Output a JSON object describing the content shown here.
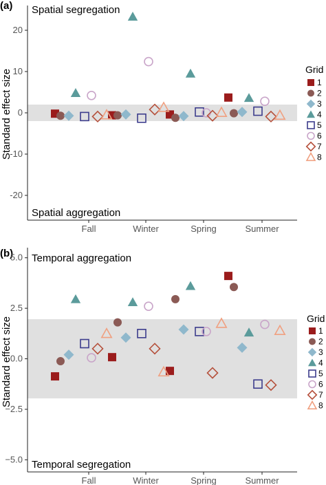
{
  "chart_data": [
    {
      "type": "scatter",
      "panel_label": "(a)",
      "top_annotation": "Spatial segregation",
      "bottom_annotation": "Spatial aggregation",
      "ylabel": "Standard effect size",
      "xlabel": "",
      "categories": [
        "Fall",
        "Winter",
        "Spring",
        "Summer"
      ],
      "ylim": [
        -26,
        26
      ],
      "yticks": [
        -20,
        -10,
        0,
        10,
        20
      ],
      "shaded_band": [
        -2,
        2
      ],
      "legend_title": "Grid",
      "legend_position": "right",
      "series": [
        {
          "name": "1",
          "values": [
            -0.2,
            -0.6,
            -0.4,
            3.7
          ]
        },
        {
          "name": "2",
          "values": [
            -0.7,
            -0.6,
            -1.2,
            -0.1
          ]
        },
        {
          "name": "3",
          "values": [
            -0.7,
            -0.4,
            -0.8,
            0.2
          ]
        },
        {
          "name": "4",
          "values": [
            4.8,
            23.3,
            9.5,
            3.6
          ]
        },
        {
          "name": "5",
          "values": [
            -0.9,
            -1.3,
            0.2,
            0.4
          ]
        },
        {
          "name": "6",
          "values": [
            4.2,
            12.4,
            0.0,
            2.8
          ]
        },
        {
          "name": "7",
          "values": [
            -0.9,
            0.8,
            -0.7,
            -0.9
          ]
        },
        {
          "name": "8",
          "values": [
            -0.5,
            1.3,
            0.1,
            -0.6
          ]
        }
      ]
    },
    {
      "type": "scatter",
      "panel_label": "(b)",
      "top_annotation": "Temporal aggregation",
      "bottom_annotation": "Temporal segregation",
      "ylabel": "Standard effect size",
      "xlabel": "",
      "categories": [
        "Fall",
        "Winter",
        "Spring",
        "Summer"
      ],
      "ylim": [
        -5.6,
        5.5
      ],
      "yticks": [
        -5.0,
        -2.5,
        0.0,
        2.5,
        5.0
      ],
      "ytick_labels": [
        "−5.0",
        "−2.5",
        "0.0",
        "2.5",
        "5.0"
      ],
      "shaded_band": [
        -1.96,
        1.96
      ],
      "legend_title": "Grid",
      "legend_position": "right",
      "series": [
        {
          "name": "1",
          "values": [
            -0.87,
            0.08,
            -0.6,
            4.1
          ]
        },
        {
          "name": "2",
          "values": [
            -0.12,
            1.8,
            2.95,
            3.55
          ]
        },
        {
          "name": "3",
          "values": [
            0.2,
            1.05,
            1.45,
            0.55
          ]
        },
        {
          "name": "4",
          "values": [
            2.95,
            2.8,
            3.6,
            1.3
          ]
        },
        {
          "name": "5",
          "values": [
            0.75,
            1.25,
            1.35,
            -1.25
          ]
        },
        {
          "name": "6",
          "values": [
            0.05,
            2.6,
            1.35,
            1.7
          ]
        },
        {
          "name": "7",
          "values": [
            0.5,
            0.5,
            -0.7,
            -1.3
          ]
        },
        {
          "name": "8",
          "values": [
            1.25,
            -0.65,
            1.75,
            1.4
          ]
        }
      ]
    }
  ],
  "style": {
    "band_color": "#e0e0e0",
    "series_colors": [
      "#9b1c1c",
      "#8b5a55",
      "#8fb8cc",
      "#5b9b9b",
      "#3c3c8c",
      "#c9a5c9",
      "#b5503b",
      "#f0a080"
    ],
    "series_markers": [
      "square",
      "circle",
      "diamond",
      "triangle",
      "square-open",
      "circle-open",
      "diamond-open",
      "triangle-open"
    ]
  }
}
